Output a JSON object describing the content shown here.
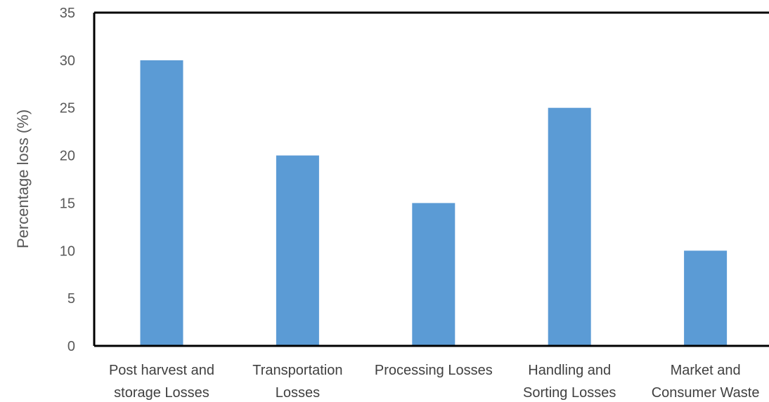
{
  "chart_data": {
    "type": "bar",
    "categories": [
      [
        "Post harvest and",
        "storage Losses"
      ],
      [
        "Transportation",
        "Losses"
      ],
      [
        "Processing Losses"
      ],
      [
        "Handling and",
        "Sorting Losses"
      ],
      [
        "Market and",
        "Consumer Waste"
      ]
    ],
    "values": [
      30,
      20,
      15,
      25,
      10
    ],
    "ylabel": "Percentage loss (%)",
    "xlabel": "",
    "title": "",
    "ylim": [
      0,
      35
    ],
    "yticks": [
      0,
      5,
      10,
      15,
      20,
      25,
      30,
      35
    ],
    "grid": false,
    "bar_color": "#5B9BD5",
    "axis_color": "#000000"
  }
}
